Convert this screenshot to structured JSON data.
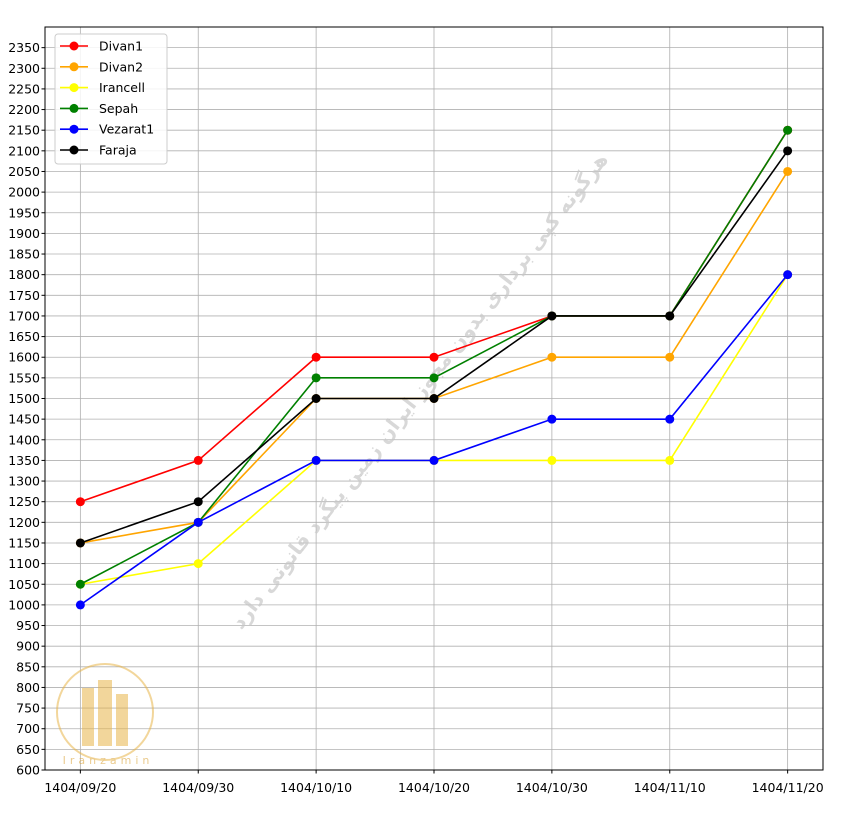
{
  "chart_data": {
    "type": "line",
    "title": "",
    "xlabel": "",
    "ylabel": "",
    "categories": [
      "1404/09/20",
      "1404/09/30",
      "1404/10/10",
      "1404/10/20",
      "1404/10/30",
      "1404/11/10",
      "1404/11/20"
    ],
    "ylim": [
      600,
      2400
    ],
    "yticks": [
      600,
      650,
      700,
      750,
      800,
      850,
      900,
      950,
      1000,
      1050,
      1100,
      1150,
      1200,
      1250,
      1300,
      1350,
      1400,
      1450,
      1500,
      1550,
      1600,
      1650,
      1700,
      1750,
      1800,
      1850,
      1900,
      1950,
      2000,
      2050,
      2100,
      2150,
      2200,
      2250,
      2300,
      2350
    ],
    "grid": true,
    "legend_position": "top-left",
    "series": [
      {
        "name": "Divan1",
        "color": "#ff0000",
        "values": [
          1250,
          1350,
          1600,
          1600,
          1700,
          1700,
          2150
        ]
      },
      {
        "name": "Divan2",
        "color": "#ffa500",
        "values": [
          1150,
          1200,
          1500,
          1500,
          1600,
          1600,
          2050
        ]
      },
      {
        "name": "Irancell",
        "color": "#ffff00",
        "values": [
          1050,
          1100,
          1350,
          1350,
          1350,
          1350,
          1800
        ]
      },
      {
        "name": "Sepah",
        "color": "#008000",
        "values": [
          1050,
          1200,
          1550,
          1550,
          1700,
          1700,
          2150
        ]
      },
      {
        "name": "Vezarat1",
        "color": "#0000ff",
        "values": [
          1000,
          1200,
          1350,
          1350,
          1450,
          1450,
          1800
        ]
      },
      {
        "name": "Faraja",
        "color": "#000000",
        "values": [
          1150,
          1250,
          1500,
          1500,
          1700,
          1700,
          2100
        ]
      }
    ]
  },
  "watermark": {
    "text": "هرگونه کپی برداری بدون مجوز ایران زمین پیگرد قانونی دارد",
    "logo_text": "Iranzamin"
  }
}
